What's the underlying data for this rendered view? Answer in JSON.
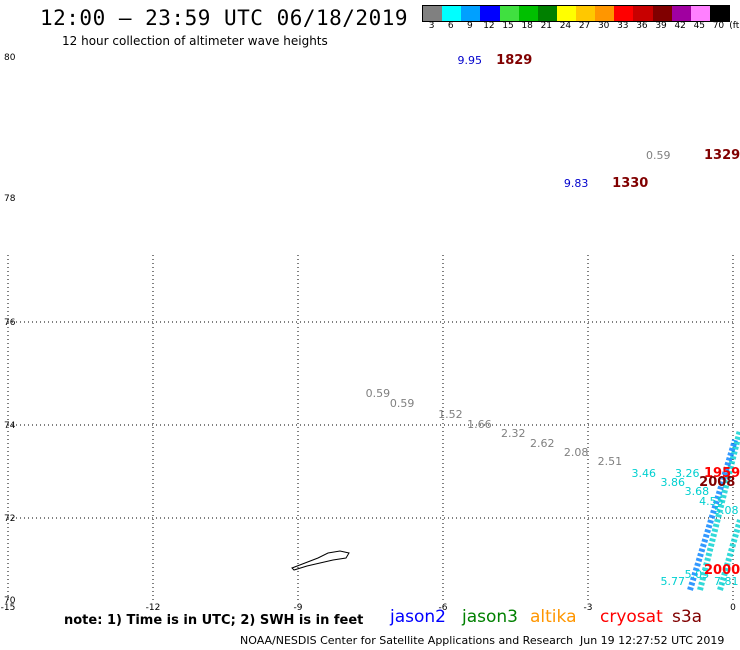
{
  "header": {
    "title": "12:00 – 23:59 UTC 06/18/2019",
    "subtitle": "12 hour collection of altimeter wave heights"
  },
  "legend": {
    "unit": "(ft)",
    "bins": [
      {
        "label": "3",
        "color": "#808080"
      },
      {
        "label": "6",
        "color": "#00ffff"
      },
      {
        "label": "9",
        "color": "#00a0ff"
      },
      {
        "label": "12",
        "color": "#0000ff"
      },
      {
        "label": "15",
        "color": "#40e040"
      },
      {
        "label": "18",
        "color": "#00c000"
      },
      {
        "label": "21",
        "color": "#008000"
      },
      {
        "label": "24",
        "color": "#ffff00"
      },
      {
        "label": "27",
        "color": "#ffc800"
      },
      {
        "label": "30",
        "color": "#ff9600"
      },
      {
        "label": "33",
        "color": "#ff0000"
      },
      {
        "label": "36",
        "color": "#c80000"
      },
      {
        "label": "39",
        "color": "#800000"
      },
      {
        "label": "42",
        "color": "#a000a0"
      },
      {
        "label": "45",
        "color": "#ff80ff"
      },
      {
        "label": "70",
        "color": "#000000"
      }
    ]
  },
  "axes": {
    "y_ticks": [
      "80",
      "78",
      "76",
      "74",
      "72",
      "70"
    ],
    "x_ticks": [
      "-15",
      "-12",
      "-9",
      "-6",
      "-3",
      "0"
    ]
  },
  "wave_points": [
    {
      "text": "9.95",
      "lon": -5.7,
      "lat": 79.95,
      "color": "#0000cc"
    },
    {
      "text": "0.59",
      "lon": -1.8,
      "lat": 78.6,
      "color": "#808080"
    },
    {
      "text": "9.83",
      "lon": -3.5,
      "lat": 78.2,
      "color": "#0000cc"
    },
    {
      "text": "0.59",
      "lon": -7.6,
      "lat": 74.6,
      "color": "#808080"
    },
    {
      "text": "0.59",
      "lon": -7.1,
      "lat": 74.4,
      "color": "#808080"
    },
    {
      "text": "1.52",
      "lon": -6.1,
      "lat": 74.2,
      "color": "#808080"
    },
    {
      "text": "1.66",
      "lon": -5.5,
      "lat": 74.0,
      "color": "#808080"
    },
    {
      "text": "2.32",
      "lon": -4.8,
      "lat": 73.8,
      "color": "#808080"
    },
    {
      "text": "2.62",
      "lon": -4.2,
      "lat": 73.6,
      "color": "#808080"
    },
    {
      "text": "2.08",
      "lon": -3.5,
      "lat": 73.4,
      "color": "#808080"
    },
    {
      "text": "2.51",
      "lon": -2.8,
      "lat": 73.2,
      "color": "#808080"
    },
    {
      "text": "3.46",
      "lon": -2.1,
      "lat": 72.95,
      "color": "#00d0d0"
    },
    {
      "text": "3.26",
      "lon": -1.2,
      "lat": 72.95,
      "color": "#00d0d0"
    },
    {
      "text": "3.86",
      "lon": -1.5,
      "lat": 72.75,
      "color": "#00d0d0"
    },
    {
      "text": "3.68",
      "lon": -1.0,
      "lat": 72.55,
      "color": "#00d0d0"
    },
    {
      "text": "4.55",
      "lon": -0.7,
      "lat": 72.35,
      "color": "#00d0d0"
    },
    {
      "text": "5.08",
      "lon": -0.3,
      "lat": 72.15,
      "color": "#00d0d0"
    },
    {
      "text": "5.77",
      "lon": -1.5,
      "lat": 70.45,
      "color": "#00d0d0"
    },
    {
      "text": "5.03",
      "lon": -1.0,
      "lat": 70.6,
      "color": "#00d0d0"
    },
    {
      "text": "7.81",
      "lon": -0.2,
      "lat": 70.45,
      "color": "#00d0d0"
    }
  ],
  "time_marks": [
    {
      "text": "1829",
      "lon": -4.9,
      "lat": 79.95,
      "color": "#800000"
    },
    {
      "text": "1329",
      "lon": 0.1,
      "lat": 78.6,
      "color": "#800000"
    },
    {
      "text": "1330",
      "lon": -2.5,
      "lat": 78.2,
      "color": "#800000"
    },
    {
      "text": "1959",
      "lon": -0.3,
      "lat": 72.95,
      "color": "#ff0000"
    },
    {
      "text": "2008",
      "lon": -0.7,
      "lat": 72.75,
      "color": "#800000"
    },
    {
      "text": "2000",
      "lon": 0.2,
      "lat": 70.7,
      "color": "#ff0000"
    }
  ],
  "footer": {
    "note": "note:  1) Time is in UTC;  2) SWH is in feet",
    "satellites": [
      {
        "name": "jason2",
        "color": "#0000ff"
      },
      {
        "name": "jason3",
        "color": "#008000"
      },
      {
        "name": "altika",
        "color": "#ff9600"
      },
      {
        "name": "cryosat",
        "color": "#ff0000"
      },
      {
        "name": "s3a",
        "color": "#800000"
      }
    ],
    "credit": "NOAA/NESDIS Center for Satellite Applications and Research",
    "timestamp": "Jun 19 12:27:52 UTC 2019"
  }
}
